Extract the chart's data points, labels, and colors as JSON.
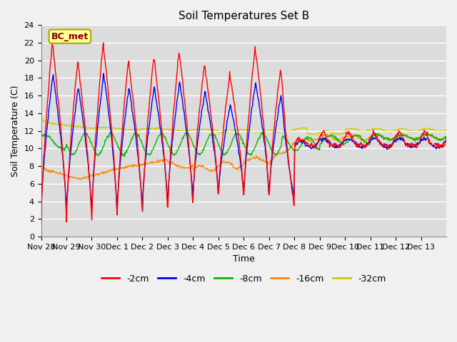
{
  "title": "Soil Temperatures Set B",
  "xlabel": "Time",
  "ylabel": "Soil Temperature (C)",
  "annotation": "BC_met",
  "ylim": [
    0,
    24
  ],
  "series_colors": [
    "#ff0000",
    "#0000ee",
    "#00bb00",
    "#ff8800",
    "#cccc00"
  ],
  "series_labels": [
    "-2cm",
    "-4cm",
    "-8cm",
    "-16cm",
    "-32cm"
  ],
  "xtick_labels": [
    "Nov 28",
    "Nov 29",
    "Nov 30",
    "Dec 1",
    "Dec 2",
    "Dec 3",
    "Dec 4",
    "Dec 5",
    "Dec 6",
    "Dec 7",
    "Dec 8",
    "Dec 9",
    "Dec 10",
    "Dec 11",
    "Dec 12",
    "Dec 13"
  ],
  "background_color": "#dcdcdc",
  "plot_bg_color": "#dcdcdc",
  "fig_bg_color": "#f0f0f0",
  "grid_color": "#ffffff",
  "title_fontsize": 11,
  "axis_fontsize": 9,
  "tick_fontsize": 8,
  "legend_fontsize": 9,
  "annotation_fontsize": 9,
  "yticks": [
    0,
    2,
    4,
    6,
    8,
    10,
    12,
    14,
    16,
    18,
    20,
    22,
    24
  ]
}
